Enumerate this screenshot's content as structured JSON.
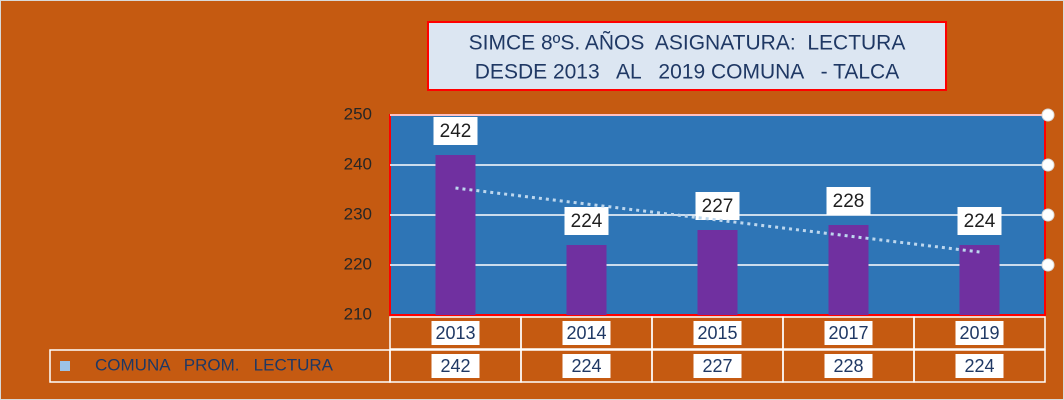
{
  "chart_data": {
    "type": "bar",
    "title": [
      "SIMCE 8ºS. AÑOS  ASIGNATURA:  LECTURA",
      "DESDE 2013   AL   2019 COMUNA   - TALCA"
    ],
    "categories": [
      "2013",
      "2014",
      "2015",
      "2017",
      "2019"
    ],
    "series": [
      {
        "name": "COMUNA   PROM.   LECTURA",
        "color": "#7030a0",
        "values": [
          242,
          224,
          227,
          228,
          224
        ]
      }
    ],
    "ylim": [
      210,
      250
    ],
    "yticks": [
      210,
      220,
      230,
      240,
      250
    ],
    "grid": true,
    "trendline": "linear",
    "data_table": true
  }
}
